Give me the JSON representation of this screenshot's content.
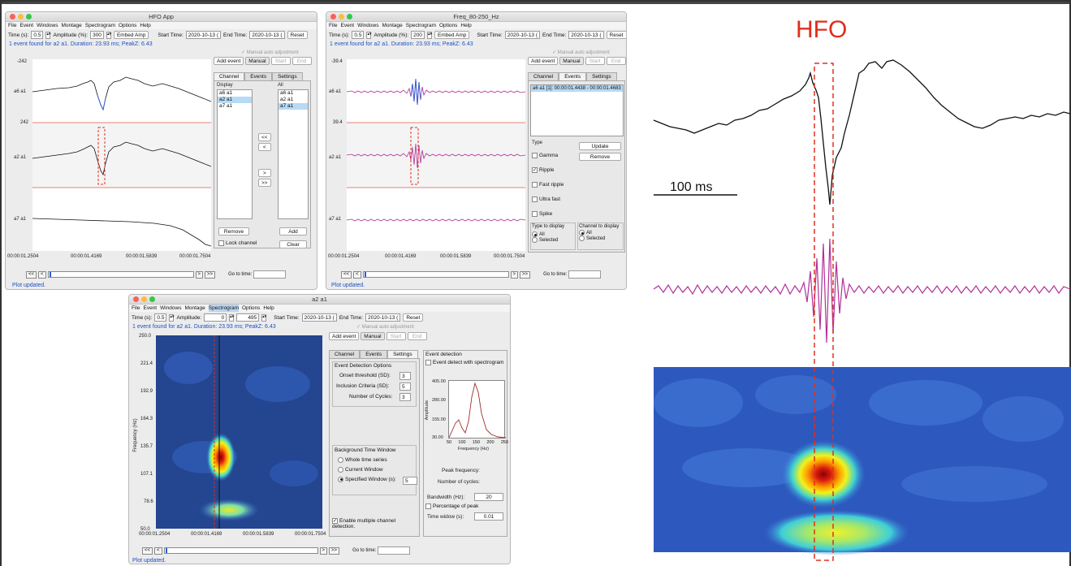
{
  "win1": {
    "title": "HFO App",
    "menu": [
      "File",
      "Event",
      "Windows",
      "Montage",
      "Spectrogram",
      "Options",
      "Help"
    ],
    "time_label": "Time (s):",
    "time_value": "0.5",
    "amp_label": "Amplitude (%):",
    "amp_value": "300",
    "embed_btn": "Embed Amp",
    "start_label": "Start Time:",
    "start_value": "2020-10-13 (",
    "end_label": "End Time:",
    "end_value": "2020-10-13 (",
    "reset_btn": "Reset",
    "status_top": "1 event found for a2 a1. Duration: 23.93 ms; PeakZ: 6.43",
    "manual_adj": "Manual auto adjustment",
    "add_event": "Add event",
    "manual": "Manual",
    "start_btn": "Start",
    "end_btn": "End",
    "tabs": [
      "Channel",
      "Events",
      "Settings"
    ],
    "display_label": "Display",
    "all_label": "All",
    "display_list": [
      "a6 a1",
      "a2 a1",
      "a7 a1"
    ],
    "all_list": [
      "a6 a1",
      "a2 a1",
      "a7 a1"
    ],
    "move_btns": [
      "<<",
      "<",
      ">",
      ">>"
    ],
    "remove_btn": "Remove",
    "add_btn": "Add",
    "lock_channel": "Lock channel",
    "clear_btn": "Clear",
    "y_ticks": [
      "-242",
      "242"
    ],
    "channels": [
      "a6 a1",
      "a2 a1",
      "a7 a1"
    ],
    "x_ticks": [
      "00:00:01.2504",
      "00:00:01.4169",
      "00:00:01.5839",
      "00:00:01.7504"
    ],
    "nav_first": "<<",
    "nav_prev": "<",
    "nav_next": ">",
    "nav_last": ">>",
    "goto_label": "Go to time:",
    "status_bottom": "Plot updated."
  },
  "win2": {
    "title": "Freq_80-250_Hz",
    "menu": [
      "File",
      "Event",
      "Windows",
      "Montage",
      "Spectrogram",
      "Options",
      "Help"
    ],
    "time_label": "Time (s):",
    "time_value": "0.5",
    "amp_label": "Amplitude (%):",
    "amp_value": "200",
    "embed_btn": "Embed Amp",
    "start_label": "Start Time:",
    "start_value": "2020-10-13 (",
    "end_label": "End Time:",
    "end_value": "2020-10-13 (",
    "reset_btn": "Reset",
    "status_top": "1 event found for a2 a1. Duration: 23.93 ms; PeakZ: 6.43",
    "manual_adj": "Manual auto adjustment",
    "add_event": "Add event",
    "manual": "Manual",
    "start_btn": "Start",
    "end_btn": "End",
    "tabs": [
      "Channel",
      "Events",
      "Settings"
    ],
    "event_item": "a6 a1 [1]: 00:00:01.4438 - 00:00:01.4683",
    "type_label": "Type",
    "types": [
      "Gamma",
      "Ripple",
      "Fast ripple",
      "Ultra fast",
      "Spike"
    ],
    "update_btn": "Update",
    "remove_btn": "Remove",
    "type_display_label": "Type to display",
    "channel_display_label": "Channel to display",
    "opt_all": "All",
    "opt_selected": "Selected",
    "y_ticks": [
      "-39.4",
      "39.4"
    ],
    "channels": [
      "a6 a1",
      "a2 a1",
      "a7 a1"
    ],
    "x_ticks": [
      "00:00:01.2504",
      "00:00:01.4169",
      "00:00:01.5839",
      "00:00:01.7504"
    ],
    "nav_first": "<<",
    "nav_prev": "<",
    "nav_next": ">",
    "nav_last": ">>",
    "goto_label": "Go to time:",
    "status_bottom": "Plot updated."
  },
  "win3": {
    "title": "a2 a1",
    "menu": [
      "File",
      "Event",
      "Windows",
      "Montage",
      "Spectrogram",
      "Options",
      "Help"
    ],
    "time_label": "Time (s):",
    "time_value": "0.5",
    "amp_label": "Amplitude:",
    "amp_value": "0",
    "amp_value2": "495",
    "start_label": "Start Time:",
    "start_value": "2020-10-13 (",
    "end_label": "End Time:",
    "end_value": "2020-10-13 (",
    "reset_btn": "Reset",
    "status_top": "1 event found for a2 a1. Duration: 23.93 ms; PeakZ: 6.43",
    "manual_adj": "Manual auto adjustment",
    "add_event": "Add event",
    "manual": "Manual",
    "start_btn": "Start",
    "end_btn": "End",
    "tabs": [
      "Channel",
      "Events",
      "Settings"
    ],
    "ed_options": "Event Detection Options",
    "onset_label": "Onset threshold (SD):",
    "onset_value": "3",
    "incl_label": "Inclusion Criteria (SD):",
    "incl_value": "5",
    "cycles_label": "Number of Cycles:",
    "cycles_value": "3",
    "bg_window": "Background Time Window",
    "bg_opts": [
      "Whole time series",
      "Current Window",
      "Specified Window (s):"
    ],
    "bg_value": "5",
    "enable_multi": "Enable multiple channel detection.",
    "event_detection": "Event detection",
    "detect_spec": "Event detect with spectrogram",
    "mini_y_ticks": [
      "405.00",
      "280.00",
      "155.00",
      "30.00"
    ],
    "mini_x_ticks": [
      "50",
      "100",
      "150",
      "200",
      "250"
    ],
    "mini_ylabel": "Amplitude",
    "mini_xlabel": "Frequency (Hz)",
    "peak_freq": "Peak frequency:",
    "num_cycles": "Number of cycles:",
    "bandwidth_label": "Bandwidth (Hz):",
    "bandwidth_value": "20",
    "pct_peak": "Percentage of peak",
    "time_window_label": "Time widow (s):",
    "time_window_value": "0.01",
    "y_ticks": [
      "250.0",
      "221.4",
      "192.9",
      "164.3",
      "135.7",
      "107.1",
      "78.6",
      "50.0"
    ],
    "ylabel": "Frequency (Hz)",
    "x_ticks": [
      "00:00:01.2504",
      "00:00:01.4169",
      "00:00:01.5839",
      "00:00:01.7504"
    ],
    "nav_first": "<<",
    "nav_prev": "<",
    "nav_next": ">",
    "nav_last": ">>",
    "goto_label": "Go to time:",
    "status_bottom": "Plot updated."
  },
  "figure": {
    "hfo_label": "HFO",
    "scale_label": "100 ms"
  },
  "colors": {
    "raw": "#111111",
    "filtered": "#b0309a",
    "blue": "#3a5fd0",
    "event_marker": "#e0301e",
    "status_blue": "#1b50c7"
  }
}
